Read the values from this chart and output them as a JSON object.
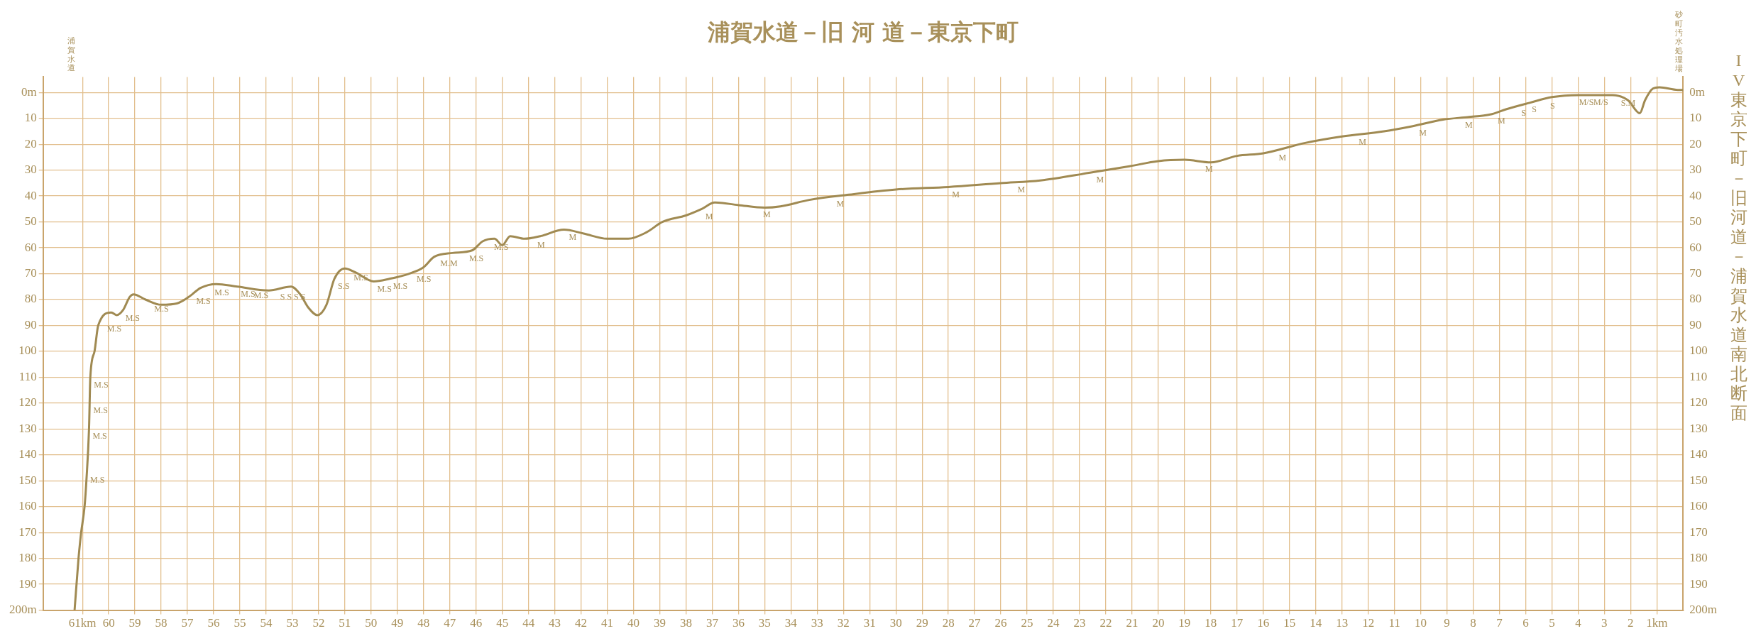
{
  "chart_data": {
    "type": "line",
    "title": "浦賀水道－旧 河 道－東京下町",
    "subtitle": "IV 東京下町－旧河道－浦賀水道南北断面",
    "x": [
      61.3,
      61.15,
      61.05,
      60.92,
      60.85,
      60.75,
      60.7,
      60.54,
      60.4,
      59.9,
      59.7,
      59.45,
      59.2,
      59.05,
      58.6,
      58,
      57.4,
      56.95,
      56.5,
      55.9,
      55.1,
      53.9,
      53.05,
      52.7,
      52.4,
      52.05,
      51.7,
      51.4,
      51,
      50.6,
      49.9,
      49.3,
      48.55,
      48,
      47.6,
      46.9,
      46.15,
      45.75,
      45.3,
      45,
      44.7,
      44.15,
      43.55,
      42.65,
      41.9,
      41,
      40.2,
      39.5,
      38.9,
      38,
      37.4,
      36.9,
      36,
      35,
      34.4,
      33.3,
      31.8,
      30,
      28,
      26,
      24.5,
      22.6,
      21.1,
      20,
      19,
      18,
      17,
      16,
      14.4,
      13,
      11.4,
      10.3,
      9.15,
      8.2,
      7.35,
      6.75,
      5.85,
      5,
      4,
      2.7,
      2.1,
      1.65,
      1.45,
      1.15,
      0.9,
      0.2,
      0
    ],
    "series": [
      {
        "color": "#a08a52",
        "values": [
          200,
          180,
          170,
          160,
          150,
          130,
          110,
          100,
          90,
          85,
          86,
          84,
          79,
          78,
          80,
          82,
          81.5,
          79,
          75.5,
          74,
          75,
          76.5,
          75,
          78,
          83,
          86,
          82,
          72,
          68,
          69.5,
          73,
          72,
          70,
          67.5,
          63.5,
          62,
          61,
          57.5,
          56.5,
          59,
          55.5,
          56.5,
          55.5,
          53,
          54.5,
          56.5,
          56.5,
          54,
          50,
          47.5,
          45,
          42.5,
          43.5,
          44.5,
          44,
          41.5,
          39.5,
          37.5,
          36.5,
          35,
          34,
          31,
          28.5,
          26.5,
          26,
          27,
          24.5,
          23.5,
          19.5,
          17,
          15,
          13,
          10.5,
          9.5,
          8.5,
          6.5,
          4,
          1.8,
          1,
          1,
          3,
          8,
          3,
          -1.5,
          -2,
          -1,
          -1
        ]
      }
    ],
    "xlim": [
      62.5,
      0
    ],
    "xticks": [
      {
        "value": 61,
        "label": "61km"
      },
      60,
      59,
      58,
      57,
      56,
      55,
      54,
      53,
      52,
      51,
      50,
      49,
      48,
      47,
      46,
      45,
      44,
      43,
      42,
      41,
      40,
      39,
      38,
      37,
      36,
      35,
      34,
      33,
      32,
      31,
      30,
      29,
      28,
      27,
      26,
      25,
      24,
      23,
      22,
      21,
      20,
      19,
      18,
      17,
      16,
      15,
      14,
      13,
      12,
      11,
      10,
      9,
      8,
      7,
      6,
      5,
      4,
      3,
      2,
      {
        "value": 1,
        "label": "1km"
      }
    ],
    "ylim": [
      200,
      -6
    ],
    "yticks": [
      {
        "value": 0,
        "label": "0m"
      },
      10,
      20,
      30,
      40,
      50,
      60,
      70,
      80,
      90,
      100,
      110,
      120,
      130,
      140,
      150,
      160,
      170,
      180,
      190,
      {
        "value": 200,
        "label": "200m"
      }
    ],
    "y2lim": [
      200,
      -6
    ],
    "y2ticks": [
      {
        "value": 0,
        "label": "0m"
      },
      10,
      20,
      30,
      40,
      50,
      60,
      70,
      80,
      90,
      100,
      110,
      120,
      130,
      140,
      150,
      160,
      170,
      180,
      190,
      {
        "value": 200,
        "label": "200m"
      }
    ],
    "grid": true,
    "legend": false,
    "marker": "none",
    "line_style": "solid",
    "annotations": [
      "浦賀水道",
      "砂町汚水処理場",
      {
        "text": "M.S",
        "x": 60.2,
        "y": 88.5
      },
      {
        "text": "M.S",
        "x": 59.5,
        "y": 84.4
      },
      {
        "text": "M.S",
        "x": 58.4,
        "y": 80.7
      },
      {
        "text": "M.S",
        "x": 56.8,
        "y": 77.8
      },
      {
        "text": "M.S",
        "x": 56.1,
        "y": 74.5
      },
      {
        "text": "M.S",
        "x": 55.1,
        "y": 75
      },
      {
        "text": "M.S",
        "x": 54.6,
        "y": 75.6
      },
      {
        "text": "S S S S",
        "x": 53.6,
        "y": 76
      },
      {
        "text": "S.S",
        "x": 51.4,
        "y": 72
      },
      {
        "text": "M.S",
        "x": 50.8,
        "y": 68.8
      },
      {
        "text": "M.S",
        "x": 49.9,
        "y": 73
      },
      {
        "text": "M.S",
        "x": 49.3,
        "y": 72
      },
      {
        "text": "M.S",
        "x": 48.4,
        "y": 69.3
      },
      {
        "text": "M.M",
        "x": 47.5,
        "y": 63.3
      },
      {
        "text": "M.S",
        "x": 46.4,
        "y": 61.3
      },
      {
        "text": "M.S",
        "x": 45.45,
        "y": 56.8
      },
      {
        "text": "M",
        "x": 43.8,
        "y": 56
      },
      {
        "text": "M",
        "x": 42.6,
        "y": 53.1
      },
      {
        "text": "M.S",
        "x": 60.7,
        "y": 110
      },
      {
        "text": "M.S",
        "x": 60.72,
        "y": 120
      },
      {
        "text": "M.S",
        "x": 60.75,
        "y": 130
      },
      {
        "text": "M.S",
        "x": 60.84,
        "y": 147
      },
      {
        "text": "M",
        "x": 37.4,
        "y": 45
      },
      {
        "text": "M",
        "x": 35.2,
        "y": 44.4
      },
      {
        "text": "M",
        "x": 32.4,
        "y": 40.3
      },
      {
        "text": "M",
        "x": 28,
        "y": 36.5
      },
      {
        "text": "M",
        "x": 25.5,
        "y": 34.7
      },
      {
        "text": "M",
        "x": 22.5,
        "y": 30.9
      },
      {
        "text": "M",
        "x": 18.35,
        "y": 26.7
      },
      {
        "text": "M",
        "x": 15.55,
        "y": 22.4
      },
      {
        "text": "M",
        "x": 12.5,
        "y": 16.4
      },
      {
        "text": "M",
        "x": 10.2,
        "y": 12.8
      },
      {
        "text": "M",
        "x": 8.45,
        "y": 9.8
      },
      {
        "text": "M",
        "x": 7.2,
        "y": 8.1
      },
      {
        "text": "S",
        "x": 6.3,
        "y": 5.2
      },
      {
        "text": "S",
        "x": 5.9,
        "y": 3.8
      },
      {
        "text": "S",
        "x": 5.2,
        "y": 2.3
      },
      {
        "text": "M/S",
        "x": 4.1,
        "y": 1
      },
      {
        "text": "M/S",
        "x": 3.55,
        "y": 1
      },
      {
        "text": "S.M",
        "x": 2.5,
        "y": 1.3
      }
    ]
  }
}
